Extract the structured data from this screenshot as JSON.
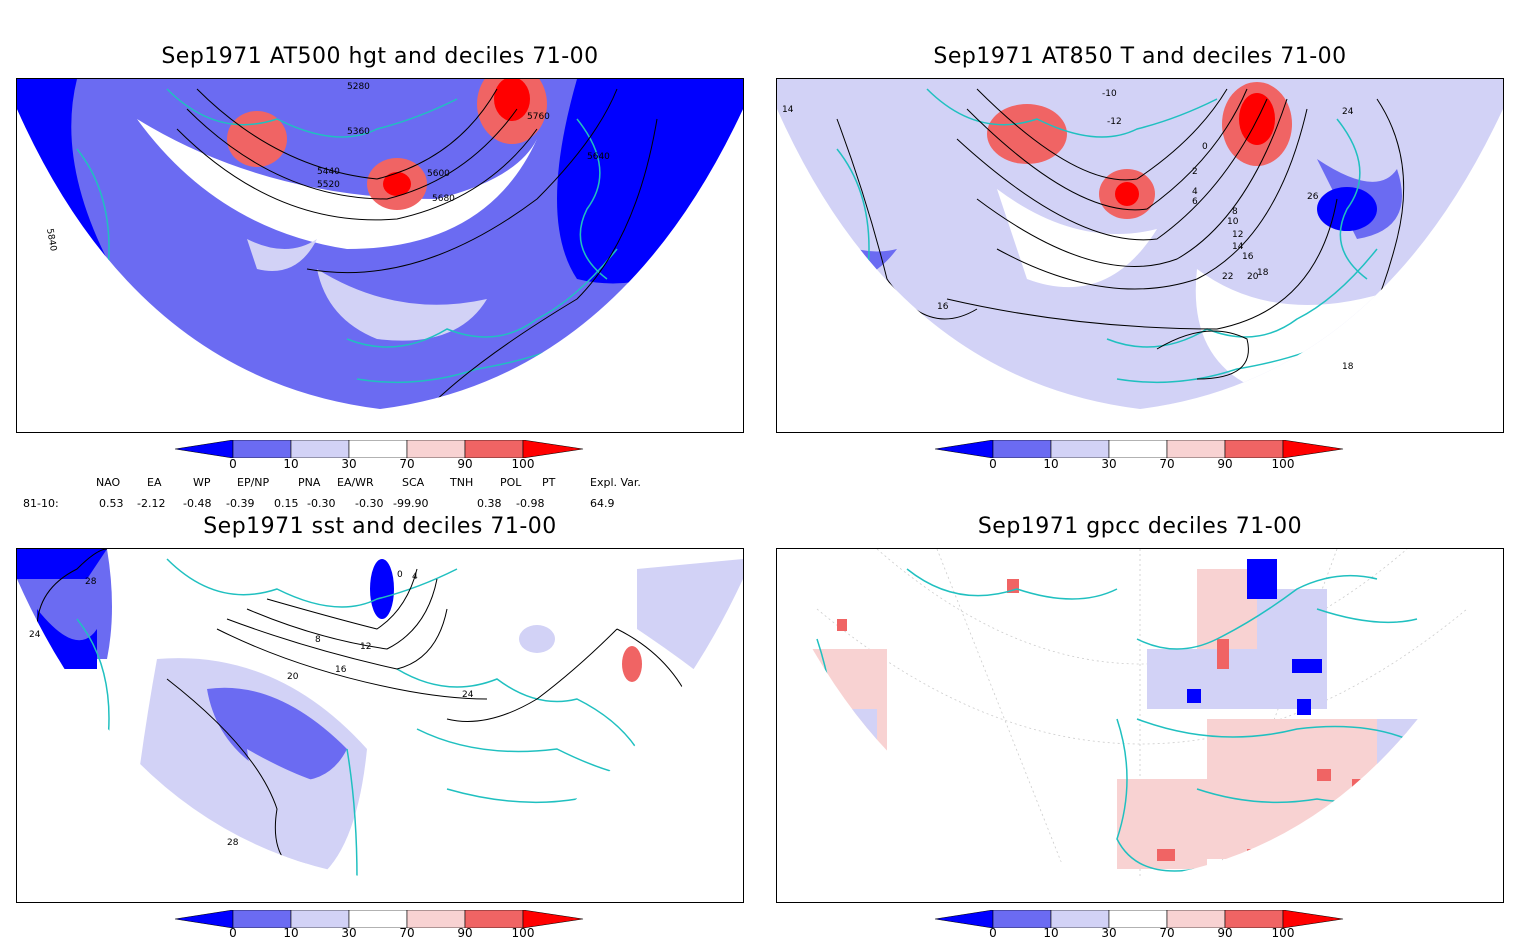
{
  "colors": {
    "deep_blue": "#0000ff",
    "mid_blue": "#6b6bf2",
    "light_blue": "#d2d2f6",
    "white": "#ffffff",
    "light_red": "#f8d2d2",
    "mid_red": "#f06464",
    "deep_red": "#ff0000",
    "coast": "#20c0c0",
    "contour": "#000000"
  },
  "colorbar": {
    "labels": [
      "0",
      "10",
      "30",
      "70",
      "90",
      "100"
    ]
  },
  "panels": [
    {
      "title": "Sep1971 AT500 hgt and deciles 71-00",
      "contours": [
        "5280",
        "5360",
        "5440",
        "5520",
        "5600",
        "5680",
        "5760",
        "5640",
        "5840"
      ]
    },
    {
      "title": "Sep1971 AT850 T and deciles 71-00",
      "contours": [
        "-10",
        "-12",
        "0",
        "2",
        "4",
        "6",
        "8",
        "10",
        "12",
        "14",
        "16",
        "18",
        "20",
        "22",
        "24",
        "26",
        "14",
        "16",
        "18"
      ]
    },
    {
      "title": "Sep1971 sst and deciles 71-00",
      "contours": [
        "28",
        "24",
        "16",
        "12",
        "8",
        "4",
        "0",
        "20",
        "24",
        "28"
      ]
    },
    {
      "title": "Sep1971 gpcc deciles 71-00",
      "contours": []
    }
  ],
  "indices": {
    "headers": [
      "NAO",
      "EA",
      "WP",
      "EP/NP",
      "PNA",
      "EA/WR",
      "SCA",
      "TNH",
      "POL",
      "PT",
      "Expl. Var."
    ],
    "row_label": "81-10:",
    "values": [
      "0.53",
      "-2.12",
      "-0.48",
      "-0.39",
      "0.15",
      "-0.30",
      "-0.30",
      "-99.90",
      "0.38",
      "-0.98",
      "64.9"
    ]
  }
}
